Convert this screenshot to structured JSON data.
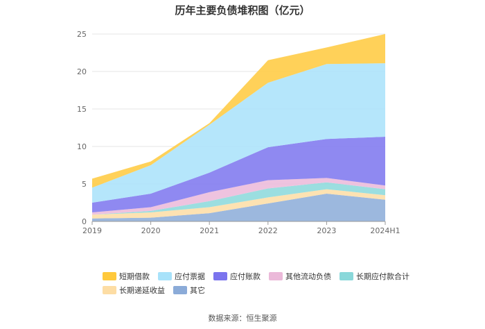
{
  "chart_data": {
    "type": "area",
    "stacked": true,
    "title": "历年主要负债堆积图（亿元）",
    "categories": [
      "2019",
      "2020",
      "2021",
      "2022",
      "2023",
      "2024H1"
    ],
    "ylim": [
      0,
      25
    ],
    "yticks": [
      0,
      5,
      10,
      15,
      20,
      25
    ],
    "grid": true,
    "legend_position": "bottom",
    "series": [
      {
        "name": "短期借款",
        "color": "#FFC93C",
        "values": [
          1.2,
          0.5,
          0.2,
          3.0,
          2.2,
          3.9
        ]
      },
      {
        "name": "应付票据",
        "color": "#A8E2FA",
        "values": [
          2.0,
          3.8,
          6.4,
          8.6,
          10.0,
          9.8
        ]
      },
      {
        "name": "应付账款",
        "color": "#7B74EE",
        "values": [
          1.3,
          1.8,
          2.6,
          4.4,
          5.2,
          6.5
        ]
      },
      {
        "name": "其他流动负债",
        "color": "#EBB9D9",
        "values": [
          0.3,
          0.5,
          1.2,
          1.1,
          0.6,
          0.5
        ]
      },
      {
        "name": "长期应付款合计",
        "color": "#8AD8DA",
        "values": [
          0.0,
          0.2,
          0.8,
          1.2,
          0.9,
          0.8
        ]
      },
      {
        "name": "长期递延收益",
        "color": "#FDDDA4",
        "values": [
          0.5,
          0.7,
          0.8,
          0.8,
          0.6,
          0.6
        ]
      },
      {
        "name": "其它",
        "color": "#8BABD8",
        "values": [
          0.4,
          0.5,
          1.1,
          2.4,
          3.7,
          2.9
        ]
      }
    ]
  },
  "source_text": "数据来源：恒生聚源"
}
